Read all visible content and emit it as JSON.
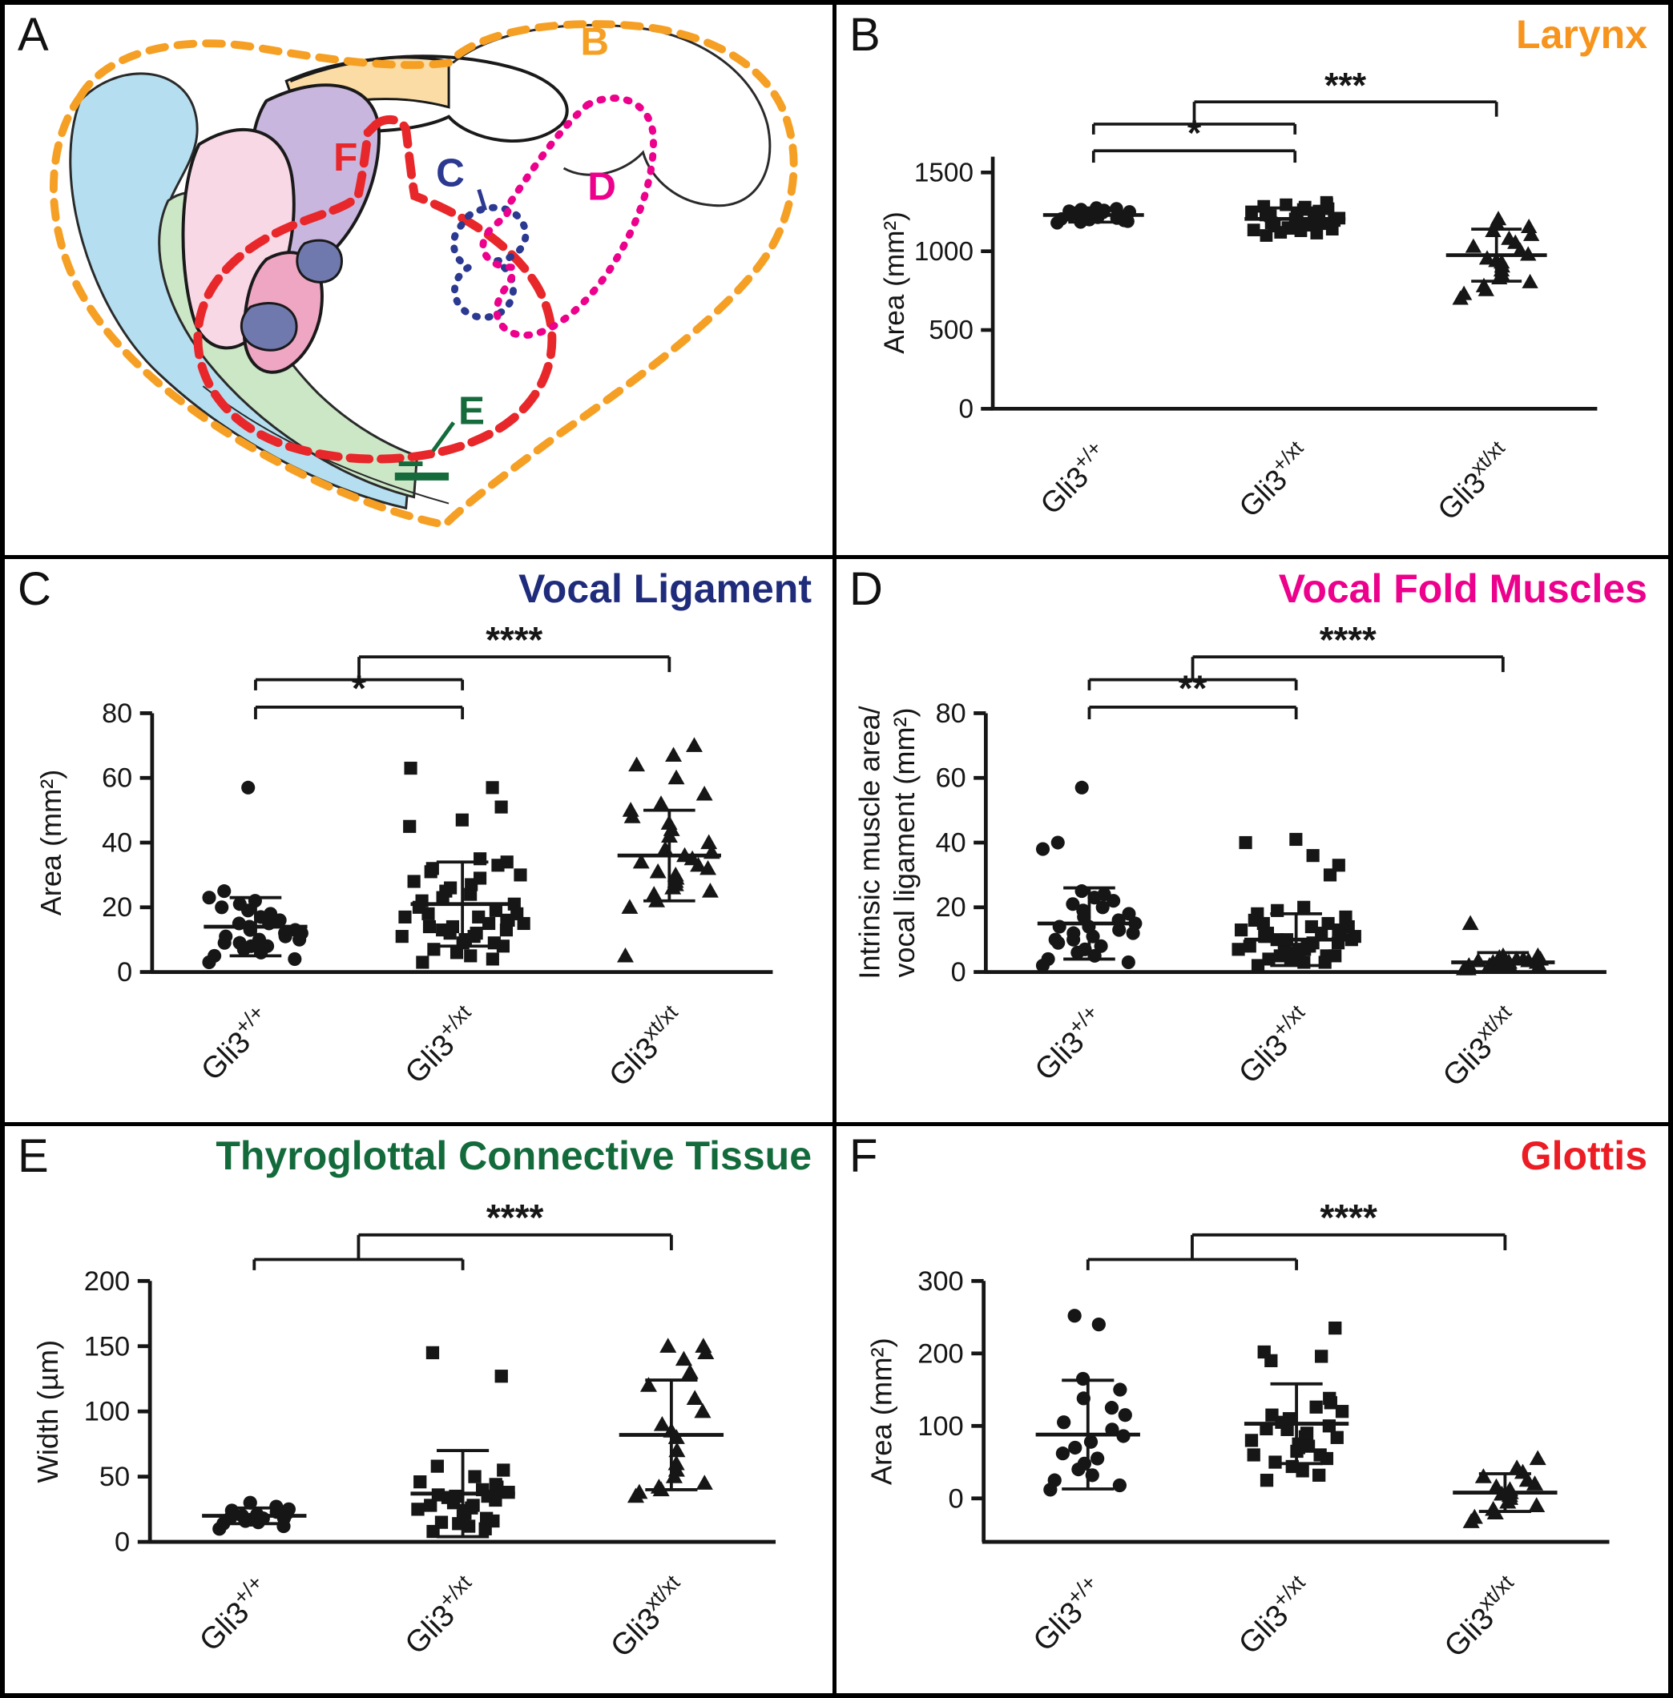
{
  "panel_a": {
    "letter": "A",
    "labels": {
      "b": "B",
      "c": "C",
      "d": "D",
      "e": "E",
      "f": "F"
    },
    "colors": {
      "b": "#F5A024",
      "c": "#2B3990",
      "d": "#EC008C",
      "e": "#156B3B",
      "f": "#E8272B",
      "blue_region": "#B5DFF0",
      "green_region": "#CBE7C6",
      "purple_region": "#C9B6DE",
      "light_pink_region": "#F9D8E6",
      "dark_pink_region": "#EFA6C3",
      "slate_region": "#6F79AD",
      "tan_region": "#FBDCA4"
    }
  },
  "chart_data": [
    {
      "panel_letter": "B",
      "type": "scatter",
      "title": "Larynx",
      "title_color": "#F7941D",
      "ylabel": [
        "Area (mm²)"
      ],
      "ylim": [
        0,
        1600
      ],
      "yticks": [
        0,
        500,
        1000,
        1500
      ],
      "categories": [
        {
          "base": "Gli3",
          "sup": "+/+"
        },
        {
          "base": "Gli3",
          "sup": "+/xt"
        },
        {
          "base": "Gli3",
          "sup": "xt/xt"
        }
      ],
      "groups": [
        {
          "marker": "circle",
          "mean": 1230,
          "sd": 45,
          "values": [
            1180,
            1195,
            1205,
            1215,
            1225,
            1235,
            1245,
            1255,
            1265,
            1275,
            1190,
            1210,
            1230,
            1250,
            1270,
            1200,
            1220,
            1240,
            1260,
            1185
          ]
        },
        {
          "marker": "square",
          "mean": 1205,
          "sd": 70,
          "values": [
            1100,
            1115,
            1130,
            1145,
            1160,
            1175,
            1190,
            1205,
            1220,
            1235,
            1250,
            1265,
            1280,
            1295,
            1310,
            1120,
            1150,
            1180,
            1210,
            1240,
            1270,
            1300,
            1135,
            1165,
            1195,
            1225,
            1255,
            1285,
            1140,
            1230
          ]
        },
        {
          "marker": "triangle",
          "mean": 975,
          "sd": 165,
          "values": [
            700,
            730,
            755,
            780,
            805,
            830,
            855,
            880,
            905,
            930,
            955,
            980,
            1005,
            1030,
            1055,
            1080,
            1105,
            1130,
            1155,
            1180,
            1205,
            940
          ]
        }
      ],
      "significance": [
        {
          "kind": "pair",
          "a": 0,
          "b": 1,
          "label": "*"
        },
        {
          "kind": "combined",
          "span": [
            0,
            1
          ],
          "b": 2,
          "label": "***"
        }
      ]
    },
    {
      "panel_letter": "C",
      "type": "scatter",
      "title": "Vocal Ligament",
      "title_color": "#1F2B7B",
      "ylabel": [
        "Area (mm²)"
      ],
      "ylim": [
        0,
        80
      ],
      "yticks": [
        0,
        20,
        40,
        60,
        80
      ],
      "categories": [
        {
          "base": "Gli3",
          "sup": "+/+"
        },
        {
          "base": "Gli3",
          "sup": "+/xt"
        },
        {
          "base": "Gli3",
          "sup": "xt/xt"
        }
      ],
      "groups": [
        {
          "marker": "circle",
          "mean": 14,
          "sd": 9,
          "values": [
            3,
            4,
            5,
            6,
            7,
            8,
            8,
            9,
            9,
            10,
            10,
            11,
            11,
            12,
            12,
            13,
            13,
            14,
            15,
            15,
            16,
            17,
            18,
            19,
            20,
            21,
            22,
            23,
            25,
            57
          ]
        },
        {
          "marker": "square",
          "mean": 21,
          "sd": 13,
          "values": [
            3,
            4,
            5,
            6,
            7,
            8,
            9,
            9,
            10,
            10,
            11,
            11,
            12,
            12,
            13,
            13,
            14,
            14,
            15,
            15,
            16,
            16,
            17,
            17,
            18,
            18,
            19,
            20,
            21,
            22,
            23,
            24,
            25,
            26,
            27,
            28,
            29,
            30,
            31,
            32,
            33,
            34,
            35,
            45,
            47,
            51,
            57,
            63
          ]
        },
        {
          "marker": "triangle",
          "mean": 36,
          "sd": 14,
          "values": [
            5,
            20,
            22,
            24,
            25,
            26,
            27,
            28,
            29,
            30,
            31,
            32,
            33,
            34,
            35,
            36,
            37,
            38,
            40,
            42,
            44,
            46,
            48,
            50,
            52,
            55,
            60,
            64,
            67,
            70
          ]
        }
      ],
      "significance": [
        {
          "kind": "pair",
          "a": 0,
          "b": 1,
          "label": "*"
        },
        {
          "kind": "combined",
          "span": [
            0,
            1
          ],
          "b": 2,
          "label": "****"
        }
      ]
    },
    {
      "panel_letter": "D",
      "type": "scatter",
      "title": "Vocal Fold Muscles",
      "title_color": "#EC008C",
      "ylabel": [
        "Intrinsic muscle area/",
        "vocal ligament (mm²)"
      ],
      "ylim": [
        0,
        80
      ],
      "yticks": [
        0,
        20,
        40,
        60,
        80
      ],
      "categories": [
        {
          "base": "Gli3",
          "sup": "+/+"
        },
        {
          "base": "Gli3",
          "sup": "+/xt"
        },
        {
          "base": "Gli3",
          "sup": "xt/xt"
        }
      ],
      "groups": [
        {
          "marker": "circle",
          "mean": 15,
          "sd": 11,
          "values": [
            2,
            3,
            4,
            5,
            6,
            7,
            8,
            9,
            10,
            11,
            12,
            13,
            14,
            15,
            16,
            17,
            18,
            19,
            20,
            21,
            22,
            23,
            24,
            25,
            10,
            12,
            14,
            38,
            40,
            57
          ]
        },
        {
          "marker": "square",
          "mean": 10,
          "sd": 8,
          "values": [
            2,
            3,
            3,
            4,
            4,
            5,
            5,
            6,
            6,
            7,
            7,
            8,
            8,
            9,
            9,
            10,
            10,
            11,
            11,
            12,
            12,
            13,
            13,
            14,
            14,
            15,
            15,
            16,
            17,
            18,
            19,
            20,
            5,
            6,
            7,
            8,
            9,
            10,
            11,
            12,
            30,
            33,
            36,
            40,
            41
          ]
        },
        {
          "marker": "triangle",
          "mean": 3,
          "sd": 3,
          "values": [
            1,
            1,
            1.5,
            2,
            2,
            2,
            2.5,
            2.5,
            3,
            3,
            3,
            3,
            3.5,
            3.5,
            4,
            4,
            4,
            4.5,
            5,
            5,
            2.5,
            3,
            15,
            2
          ]
        }
      ],
      "significance": [
        {
          "kind": "pair",
          "a": 0,
          "b": 1,
          "label": "**"
        },
        {
          "kind": "combined",
          "span": [
            0,
            1
          ],
          "b": 2,
          "label": "****"
        }
      ]
    },
    {
      "panel_letter": "E",
      "type": "scatter",
      "title": "Thyroglottal Connective Tissue",
      "title_color": "#136B3C",
      "ylabel": [
        "Width (µm)"
      ],
      "ylim": [
        0,
        200
      ],
      "yticks": [
        0,
        50,
        100,
        150,
        200
      ],
      "categories": [
        {
          "base": "Gli3",
          "sup": "+/+"
        },
        {
          "base": "Gli3",
          "sup": "+/xt"
        },
        {
          "base": "Gli3",
          "sup": "xt/xt"
        }
      ],
      "groups": [
        {
          "marker": "circle",
          "mean": 20,
          "sd": 6,
          "values": [
            10,
            12,
            14,
            15,
            16,
            17,
            18,
            19,
            20,
            21,
            22,
            23,
            24,
            25,
            27,
            30,
            18
          ]
        },
        {
          "marker": "square",
          "mean": 37,
          "sd": 33,
          "values": [
            8,
            10,
            12,
            14,
            15,
            16,
            18,
            20,
            22,
            24,
            25,
            26,
            28,
            30,
            32,
            34,
            35,
            36,
            38,
            40,
            42,
            44,
            46,
            50,
            55,
            58,
            35,
            28,
            127,
            145
          ]
        },
        {
          "marker": "triangle",
          "mean": 82,
          "sd": 42,
          "values": [
            35,
            38,
            40,
            42,
            45,
            50,
            55,
            60,
            70,
            80,
            90,
            100,
            110,
            120,
            130,
            140,
            145,
            150,
            150,
            85
          ]
        }
      ],
      "significance": [
        {
          "kind": "combined",
          "span": [
            0,
            1
          ],
          "b": 2,
          "label": "****"
        }
      ]
    },
    {
      "panel_letter": "F",
      "type": "scatter",
      "title": "Glottis",
      "title_color": "#EC1C24",
      "ylabel": [
        "Area (mm²)"
      ],
      "ylim": [
        -60,
        300
      ],
      "yticks": [
        0,
        100,
        200,
        300
      ],
      "categories": [
        {
          "base": "Gli3",
          "sup": "+/+"
        },
        {
          "base": "Gli3",
          "sup": "+/xt"
        },
        {
          "base": "Gli3",
          "sup": "xt/xt"
        }
      ],
      "groups": [
        {
          "marker": "circle",
          "mean": 88,
          "sd": 75,
          "values": [
            12,
            18,
            25,
            32,
            40,
            48,
            55,
            62,
            70,
            78,
            86,
            95,
            105,
            115,
            125,
            138,
            150,
            165,
            240,
            252
          ]
        },
        {
          "marker": "square",
          "mean": 103,
          "sd": 55,
          "values": [
            25,
            32,
            38,
            44,
            50,
            55,
            60,
            65,
            70,
            75,
            80,
            85,
            90,
            95,
            100,
            105,
            110,
            115,
            120,
            126,
            132,
            138,
            60,
            72,
            84,
            190,
            196,
            202,
            235,
            96
          ]
        },
        {
          "marker": "triangle",
          "mean": 8,
          "sd": 26,
          "values": [
            -32,
            -26,
            -20,
            -15,
            -10,
            -5,
            0,
            4,
            8,
            12,
            16,
            20,
            25,
            30,
            36,
            42,
            55,
            6
          ]
        }
      ],
      "significance": [
        {
          "kind": "combined",
          "span": [
            0,
            1
          ],
          "b": 2,
          "label": "****"
        }
      ]
    }
  ]
}
